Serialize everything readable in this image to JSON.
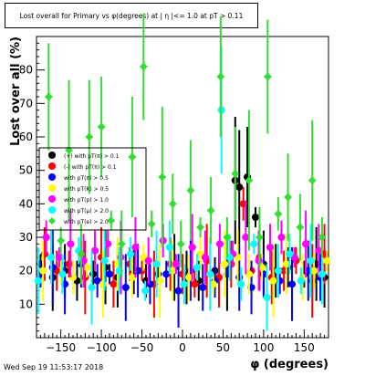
{
  "title": "Lost overall for Primary vs φ(degrees) at | η |<= 1.0 at pT > 0.11",
  "footer": "Wed Sep 19 11:53:17 2018",
  "chart_data": {
    "type": "scatter",
    "xlabel": "φ (degrees)",
    "ylabel": "Lost over all (%)",
    "xlim": [
      -180,
      180
    ],
    "ylim": [
      0,
      90
    ],
    "x_ticks": [
      -150,
      -100,
      -50,
      0,
      50,
      100,
      150
    ],
    "y_ticks": [
      10,
      20,
      30,
      40,
      50,
      60,
      70,
      80
    ],
    "grid": false,
    "legend_placement": "top-left",
    "series": [
      {
        "name": "(+) with pT(π) > 0.1",
        "color": "#000000",
        "marker": "circle",
        "points": [
          [
            -175,
            22
          ],
          [
            -160,
            18
          ],
          [
            -145,
            20
          ],
          [
            -130,
            17
          ],
          [
            -110,
            19
          ],
          [
            -95,
            21
          ],
          [
            -80,
            18
          ],
          [
            -60,
            20
          ],
          [
            -45,
            17
          ],
          [
            -30,
            19
          ],
          [
            -10,
            21
          ],
          [
            5,
            18
          ],
          [
            20,
            17
          ],
          [
            40,
            20
          ],
          [
            55,
            19
          ],
          [
            65,
            47
          ],
          [
            70,
            45
          ],
          [
            80,
            48
          ],
          [
            90,
            36
          ],
          [
            100,
            22
          ],
          [
            115,
            20
          ],
          [
            130,
            21
          ],
          [
            150,
            19
          ],
          [
            165,
            22
          ],
          [
            175,
            18
          ]
        ]
      },
      {
        "name": "(-) with pT(π) > 0.1",
        "color": "#ff0000",
        "marker": "circle",
        "points": [
          [
            -170,
            25
          ],
          [
            -155,
            20
          ],
          [
            -140,
            22
          ],
          [
            -120,
            18
          ],
          [
            -100,
            24
          ],
          [
            -85,
            16
          ],
          [
            -65,
            22
          ],
          [
            -50,
            20
          ],
          [
            -35,
            16
          ],
          [
            -15,
            22
          ],
          [
            0,
            19
          ],
          [
            15,
            16
          ],
          [
            30,
            23
          ],
          [
            45,
            18
          ],
          [
            60,
            22
          ],
          [
            75,
            40
          ],
          [
            85,
            20
          ],
          [
            95,
            24
          ],
          [
            110,
            18
          ],
          [
            125,
            20
          ],
          [
            140,
            23
          ],
          [
            160,
            17
          ],
          [
            175,
            25
          ]
        ]
      },
      {
        "name": "with pT(π) > 0.5",
        "color": "#0000ff",
        "marker": "circle",
        "points": [
          [
            -175,
            19
          ],
          [
            -160,
            21
          ],
          [
            -145,
            16
          ],
          [
            -125,
            22
          ],
          [
            -105,
            17
          ],
          [
            -90,
            19
          ],
          [
            -70,
            15
          ],
          [
            -55,
            20
          ],
          [
            -40,
            16
          ],
          [
            -20,
            19
          ],
          [
            -5,
            14
          ],
          [
            10,
            20
          ],
          [
            25,
            15
          ],
          [
            40,
            17
          ],
          [
            55,
            21
          ],
          [
            70,
            18
          ],
          [
            85,
            15
          ],
          [
            100,
            19
          ],
          [
            120,
            17
          ],
          [
            135,
            16
          ],
          [
            155,
            20
          ],
          [
            170,
            18
          ]
        ]
      },
      {
        "name": "with pT(K) > 0.5",
        "color": "#ffff00",
        "marker": "circle",
        "points": [
          [
            -172,
            20
          ],
          [
            -150,
            23
          ],
          [
            -135,
            18
          ],
          [
            -118,
            21
          ],
          [
            -98,
            16
          ],
          [
            -80,
            22
          ],
          [
            -62,
            18
          ],
          [
            -48,
            24
          ],
          [
            -28,
            17
          ],
          [
            -12,
            20
          ],
          [
            8,
            18
          ],
          [
            22,
            25
          ],
          [
            38,
            16
          ],
          [
            52,
            22
          ],
          [
            68,
            24
          ],
          [
            82,
            19
          ],
          [
            98,
            21
          ],
          [
            112,
            17
          ],
          [
            128,
            22
          ],
          [
            148,
            18
          ],
          [
            162,
            20
          ],
          [
            178,
            23
          ]
        ]
      },
      {
        "name": "with pT(p) > 1.0",
        "color": "#ff00ff",
        "marker": "circle",
        "points": [
          [
            -168,
            30
          ],
          [
            -152,
            24
          ],
          [
            -138,
            28
          ],
          [
            -122,
            23
          ],
          [
            -108,
            26
          ],
          [
            -92,
            28
          ],
          [
            -76,
            24
          ],
          [
            -58,
            27
          ],
          [
            -42,
            23
          ],
          [
            -24,
            29
          ],
          [
            -8,
            22
          ],
          [
            12,
            27
          ],
          [
            28,
            24
          ],
          [
            46,
            28
          ],
          [
            62,
            25
          ],
          [
            78,
            30
          ],
          [
            94,
            23
          ],
          [
            108,
            27
          ],
          [
            122,
            30
          ],
          [
            138,
            24
          ],
          [
            152,
            28
          ],
          [
            168,
            26
          ]
        ]
      },
      {
        "name": "with pT(μ) > 2.0",
        "color": "#00ffff",
        "marker": "circle",
        "points": [
          [
            -178,
            17
          ],
          [
            -162,
            24
          ],
          [
            -148,
            19
          ],
          [
            -128,
            26
          ],
          [
            -112,
            15
          ],
          [
            -96,
            23
          ],
          [
            -78,
            20
          ],
          [
            -64,
            25
          ],
          [
            -46,
            14
          ],
          [
            -32,
            22
          ],
          [
            -16,
            27
          ],
          [
            2,
            16
          ],
          [
            18,
            21
          ],
          [
            34,
            19
          ],
          [
            48,
            68
          ],
          [
            58,
            24
          ],
          [
            72,
            16
          ],
          [
            88,
            28
          ],
          [
            104,
            12
          ],
          [
            118,
            20
          ],
          [
            132,
            25
          ],
          [
            146,
            17
          ],
          [
            158,
            23
          ],
          [
            172,
            19
          ]
        ]
      },
      {
        "name": "with pT(e) > 2.0",
        "color": "#33dd33",
        "marker": "diamond",
        "points": [
          [
            -165,
            72
          ],
          [
            -150,
            29
          ],
          [
            -140,
            56
          ],
          [
            -125,
            25
          ],
          [
            -115,
            60
          ],
          [
            -100,
            63
          ],
          [
            -88,
            35
          ],
          [
            -75,
            28
          ],
          [
            -62,
            54
          ],
          [
            -48,
            81
          ],
          [
            -38,
            34
          ],
          [
            -25,
            48
          ],
          [
            -12,
            40
          ],
          [
            -2,
            28
          ],
          [
            10,
            44
          ],
          [
            22,
            33
          ],
          [
            35,
            38
          ],
          [
            47,
            78
          ],
          [
            55,
            30
          ],
          [
            65,
            49
          ],
          [
            82,
            47
          ],
          [
            95,
            30
          ],
          [
            105,
            78
          ],
          [
            118,
            37
          ],
          [
            130,
            42
          ],
          [
            145,
            33
          ],
          [
            160,
            47
          ],
          [
            172,
            30
          ]
        ]
      }
    ]
  }
}
